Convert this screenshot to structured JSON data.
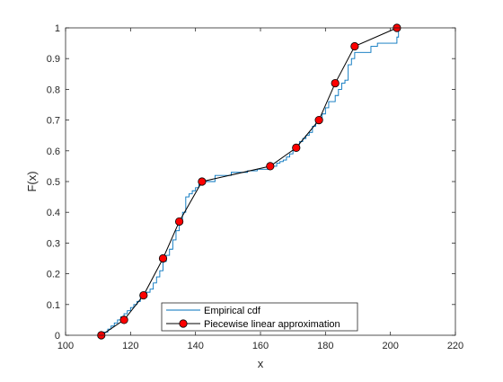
{
  "chart_data": {
    "type": "line",
    "xlabel": "x",
    "ylabel": "F(x)",
    "xlim": [
      100,
      220
    ],
    "ylim": [
      0,
      1
    ],
    "xticks": [
      "100",
      "120",
      "140",
      "160",
      "180",
      "200",
      "220"
    ],
    "yticks": [
      "0",
      "0.1",
      "0.2",
      "0.3",
      "0.4",
      "0.5",
      "0.6",
      "0.7",
      "0.8",
      "0.9",
      "1"
    ],
    "xtick_values": [
      100,
      120,
      140,
      160,
      180,
      200,
      220
    ],
    "ytick_values": [
      0,
      0.1,
      0.2,
      0.3,
      0.4,
      0.5,
      0.6,
      0.7,
      0.8,
      0.9,
      1
    ],
    "grid": false,
    "legend_position": "bottom-center",
    "series": [
      {
        "name": "Empirical cdf",
        "style": "stairs",
        "color": "#0072BD",
        "x": [
          111,
          113,
          114,
          115,
          116,
          117,
          118,
          119,
          120,
          121,
          122,
          123,
          124,
          125,
          126,
          127,
          128,
          129,
          130,
          131,
          132,
          133,
          134,
          135,
          136,
          137,
          138,
          139,
          140,
          141,
          142,
          146,
          151,
          156,
          159,
          163,
          165,
          166,
          167,
          168,
          169,
          170,
          171,
          172,
          173,
          174,
          175,
          176,
          177,
          178,
          179,
          180,
          181,
          183,
          184,
          185,
          186,
          187,
          188,
          189,
          194,
          196,
          202
        ],
        "y": [
          0.01,
          0.02,
          0.03,
          0.04,
          0.05,
          0.06,
          0.07,
          0.08,
          0.09,
          0.1,
          0.11,
          0.12,
          0.13,
          0.14,
          0.15,
          0.17,
          0.19,
          0.21,
          0.24,
          0.26,
          0.28,
          0.31,
          0.34,
          0.37,
          0.4,
          0.45,
          0.46,
          0.47,
          0.48,
          0.49,
          0.5,
          0.52,
          0.53,
          0.535,
          0.54,
          0.55,
          0.56,
          0.565,
          0.57,
          0.58,
          0.59,
          0.61,
          0.62,
          0.63,
          0.64,
          0.65,
          0.66,
          0.68,
          0.69,
          0.7,
          0.72,
          0.74,
          0.76,
          0.78,
          0.8,
          0.82,
          0.83,
          0.88,
          0.9,
          0.92,
          0.94,
          0.95,
          0.97
        ]
      },
      {
        "name": "Piecewise linear approximation",
        "style": "line-markers",
        "color": "#000000",
        "marker_color": "#FF0000",
        "x": [
          111,
          118,
          124,
          130,
          135,
          142,
          163,
          171,
          178,
          183,
          189,
          202
        ],
        "y": [
          0.0,
          0.05,
          0.13,
          0.25,
          0.37,
          0.5,
          0.55,
          0.61,
          0.7,
          0.82,
          0.94,
          1.0
        ]
      }
    ]
  }
}
